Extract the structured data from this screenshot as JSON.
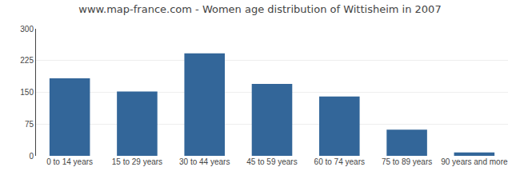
{
  "chart_data": {
    "type": "bar",
    "title": "www.map-france.com - Women age distribution of Wittisheim in 2007",
    "categories": [
      "0 to 14 years",
      "15 to 29 years",
      "30 to 44 years",
      "45 to 59 years",
      "60 to 74 years",
      "75 to 89 years",
      "90 years and more"
    ],
    "values": [
      183,
      152,
      242,
      170,
      140,
      62,
      8
    ],
    "color": "#336699",
    "ylim": [
      0,
      300
    ],
    "yticks": [
      0,
      75,
      150,
      225,
      300
    ],
    "grid": true
  }
}
